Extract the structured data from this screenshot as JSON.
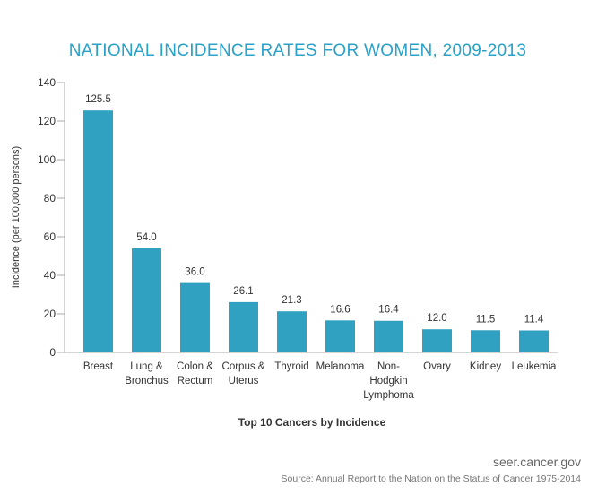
{
  "chart_data": {
    "type": "bar",
    "title": "NATIONAL INCIDENCE RATES FOR WOMEN, 2009-2013",
    "xlabel": "Top 10 Cancers by Incidence",
    "ylabel": "Incidence (per 100,000 persons)",
    "categories": [
      [
        "Breast"
      ],
      [
        "Lung &",
        "Bronchus"
      ],
      [
        "Colon &",
        "Rectum"
      ],
      [
        "Corpus &",
        "Uterus"
      ],
      [
        "Thyroid"
      ],
      [
        "Melanoma"
      ],
      [
        "Non-",
        "Hodgkin",
        "Lymphoma"
      ],
      [
        "Ovary"
      ],
      [
        "Kidney"
      ],
      [
        "Leukemia"
      ]
    ],
    "values": [
      125.5,
      54.0,
      36.0,
      26.1,
      21.3,
      16.6,
      16.4,
      12.0,
      11.5,
      11.4
    ],
    "value_labels": [
      "125.5",
      "54.0",
      "36.0",
      "26.1",
      "21.3",
      "16.6",
      "16.4",
      "12.0",
      "11.5",
      "11.4"
    ],
    "ylim": [
      0,
      140
    ],
    "yticks": [
      0,
      20,
      40,
      60,
      80,
      100,
      120,
      140
    ],
    "grid": false,
    "bar_color": "#31a1c1",
    "title_color": "#2aa1c9"
  },
  "footer": {
    "site": "seer.cancer.gov",
    "source": "Source: Annual Report to the Nation on the Status of Cancer 1975-2014"
  }
}
